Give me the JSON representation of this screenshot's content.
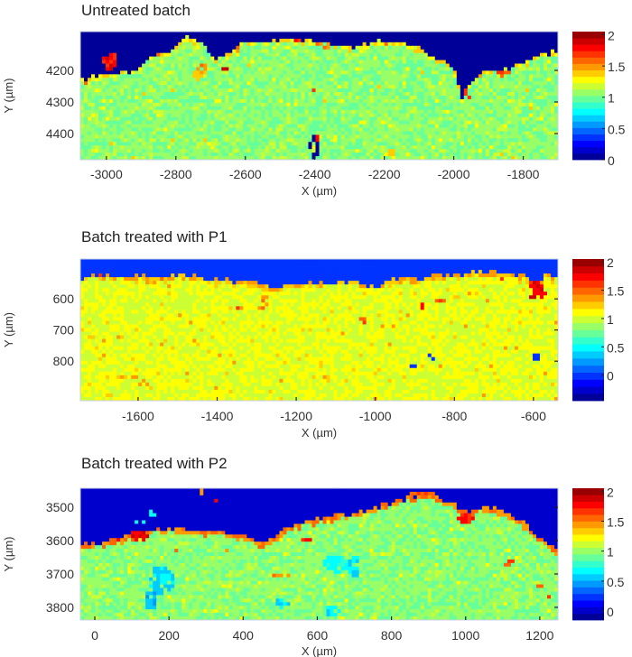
{
  "chart_data": [
    {
      "type": "heatmap",
      "title": "Untreated batch",
      "xlabel": "X (µm)",
      "ylabel": "Y (µm)",
      "xlim": [
        -3075,
        -1700
      ],
      "ylim": [
        4077,
        4483
      ],
      "y_direction": "down",
      "xticks": [
        -3000,
        -2800,
        -2600,
        -2400,
        -2200,
        -2000,
        -1800
      ],
      "yticks": [
        4200,
        4300,
        4400
      ],
      "colormap": "jet",
      "colorbar": {
        "range": [
          0,
          2.05
        ],
        "ticks": [
          "0",
          "0.5",
          "1",
          "1.5",
          "2"
        ],
        "tick_values": [
          0,
          0.5,
          1,
          1.5,
          2
        ],
        "levels": 20
      },
      "grid": false,
      "background_value": 0,
      "bulk_value": 1.05,
      "surface_layer": {
        "depth": 10,
        "value": 1.3
      },
      "surface_profile": [
        [
          -3075,
          4230
        ],
        [
          -3000,
          4215
        ],
        [
          -2920,
          4200
        ],
        [
          -2880,
          4160
        ],
        [
          -2820,
          4140
        ],
        [
          -2770,
          4095
        ],
        [
          -2720,
          4110
        ],
        [
          -2690,
          4170
        ],
        [
          -2650,
          4150
        ],
        [
          -2600,
          4110
        ],
        [
          -2560,
          4105
        ],
        [
          -2400,
          4105
        ],
        [
          -2330,
          4120
        ],
        [
          -2280,
          4130
        ],
        [
          -2230,
          4110
        ],
        [
          -2150,
          4110
        ],
        [
          -2100,
          4130
        ],
        [
          -2050,
          4160
        ],
        [
          -2000,
          4190
        ],
        [
          -1975,
          4290
        ],
        [
          -1940,
          4220
        ],
        [
          -1900,
          4200
        ],
        [
          -1850,
          4195
        ],
        [
          -1800,
          4175
        ],
        [
          -1750,
          4150
        ],
        [
          -1700,
          4140
        ]
      ],
      "features": [
        [
          -2990,
          4170,
          22,
          28,
          1.8
        ],
        [
          -2720,
          4195,
          18,
          20,
          1.5
        ],
        [
          -2660,
          4195,
          8,
          10,
          1.9
        ],
        [
          -1965,
          4285,
          10,
          22,
          1.7
        ],
        [
          -2400,
          4440,
          14,
          40,
          0
        ],
        [
          -2395,
          4415,
          10,
          8,
          1.8
        ],
        [
          -2400,
          4265,
          6,
          6,
          1.6
        ],
        [
          -2450,
          4105,
          10,
          12,
          1.8
        ],
        [
          -2370,
          4120,
          15,
          10,
          1.5
        ],
        [
          -1860,
          4210,
          25,
          8,
          1.6
        ],
        [
          -2180,
          4465,
          15,
          15,
          1.35
        ],
        [
          -2740,
          4215,
          15,
          15,
          1.4
        ]
      ]
    },
    {
      "type": "heatmap",
      "title": "Batch treated with P1",
      "xlabel": "X (µm)",
      "ylabel": "Y (µm)",
      "xlim": [
        -1746,
        -538
      ],
      "ylim": [
        472,
        927
      ],
      "y_direction": "down",
      "xticks": [
        -1600,
        -1400,
        -1200,
        -1000,
        -800,
        -600
      ],
      "yticks": [
        600,
        700,
        800
      ],
      "colormap": "jet",
      "colorbar": {
        "range": [
          -0.45,
          2.05
        ],
        "ticks": [
          "0",
          "0.5",
          "1",
          "1.5",
          "2"
        ],
        "tick_values": [
          0,
          0.5,
          1,
          1.5,
          2
        ],
        "levels": 20
      },
      "grid": false,
      "background_value": 0,
      "bulk_value": 1.05,
      "surface_layer": {
        "depth": 12,
        "value": 1.3
      },
      "surface_profile": [
        [
          -1746,
          532
        ],
        [
          -1700,
          525
        ],
        [
          -1600,
          525
        ],
        [
          -1550,
          535
        ],
        [
          -1500,
          525
        ],
        [
          -1450,
          530
        ],
        [
          -1400,
          540
        ],
        [
          -1300,
          545
        ],
        [
          -1260,
          572
        ],
        [
          -1220,
          555
        ],
        [
          -1150,
          545
        ],
        [
          -1050,
          545
        ],
        [
          -1020,
          560
        ],
        [
          -990,
          560
        ],
        [
          -950,
          535
        ],
        [
          -870,
          530
        ],
        [
          -800,
          520
        ],
        [
          -700,
          515
        ],
        [
          -620,
          530
        ],
        [
          -600,
          545
        ],
        [
          -560,
          525
        ],
        [
          -538,
          520
        ]
      ],
      "features": [
        [
          -590,
          575,
          22,
          30,
          1.75
        ],
        [
          -840,
          607,
          14,
          8,
          1.5
        ],
        [
          -880,
          622,
          6,
          8,
          1.7
        ],
        [
          -1030,
          670,
          10,
          14,
          1.5
        ],
        [
          -862,
          792,
          16,
          12,
          0
        ],
        [
          -592,
          790,
          13,
          14,
          0
        ],
        [
          -905,
          815,
          6,
          5,
          0
        ],
        [
          -1280,
          610,
          10,
          25,
          1.4
        ],
        [
          -1710,
          755,
          5,
          6,
          1.7
        ],
        [
          -1640,
          850,
          45,
          4,
          1.3
        ],
        [
          -1720,
          845,
          8,
          5,
          1.6
        ],
        [
          -1350,
          625,
          5,
          5,
          1.6
        ]
      ]
    },
    {
      "type": "heatmap",
      "title": "Batch treated with P2",
      "xlabel": "X (µm)",
      "ylabel": "Y (µm)",
      "xlim": [
        -39,
        1249
      ],
      "ylim": [
        3443,
        3838
      ],
      "y_direction": "down",
      "xticks": [
        0,
        200,
        400,
        600,
        800,
        1000,
        1200
      ],
      "yticks": [
        3500,
        3600,
        3700,
        3800
      ],
      "colormap": "jet",
      "colorbar": {
        "range": [
          -0.15,
          2.05
        ],
        "ticks": [
          "0",
          "0.5",
          "1",
          "1.5",
          "2"
        ],
        "tick_values": [
          0,
          0.5,
          1,
          1.5,
          2
        ],
        "levels": 20
      },
      "grid": false,
      "background_value": 0,
      "bulk_value": 0.98,
      "surface_layer": {
        "depth": 14,
        "value": 1.5
      },
      "surface_profile": [
        [
          -39,
          3615
        ],
        [
          50,
          3600
        ],
        [
          100,
          3580
        ],
        [
          150,
          3565
        ],
        [
          250,
          3565
        ],
        [
          350,
          3575
        ],
        [
          420,
          3590
        ],
        [
          450,
          3610
        ],
        [
          480,
          3595
        ],
        [
          520,
          3560
        ],
        [
          600,
          3535
        ],
        [
          700,
          3515
        ],
        [
          780,
          3495
        ],
        [
          850,
          3470
        ],
        [
          900,
          3455
        ],
        [
          950,
          3480
        ],
        [
          1000,
          3510
        ],
        [
          1050,
          3500
        ],
        [
          1100,
          3510
        ],
        [
          1150,
          3540
        ],
        [
          1200,
          3590
        ],
        [
          1249,
          3630
        ]
      ],
      "features": [
        [
          120,
          3585,
          25,
          15,
          1.85
        ],
        [
          570,
          3600,
          14,
          8,
          1.7
        ],
        [
          500,
          3700,
          35,
          6,
          1.5
        ],
        [
          1000,
          3535,
          22,
          18,
          1.75
        ],
        [
          1120,
          3670,
          14,
          10,
          1.6
        ],
        [
          220,
          3630,
          7,
          8,
          1.6
        ],
        [
          200,
          3680,
          7,
          8,
          1.7
        ],
        [
          360,
          3625,
          20,
          5,
          1.5
        ],
        [
          180,
          3720,
          35,
          45,
          0.6
        ],
        [
          150,
          3780,
          18,
          30,
          0.55
        ],
        [
          500,
          3790,
          25,
          12,
          0.6
        ],
        [
          650,
          3670,
          35,
          25,
          0.7
        ],
        [
          700,
          3680,
          15,
          35,
          0.6
        ],
        [
          640,
          3810,
          20,
          15,
          0.65
        ],
        [
          80,
          3550,
          20,
          4,
          0.7
        ],
        [
          120,
          3545,
          15,
          4,
          0.7
        ],
        [
          155,
          3520,
          8,
          10,
          0.7
        ],
        [
          290,
          3455,
          6,
          10,
          1.5
        ],
        [
          325,
          3478,
          6,
          5,
          1.8
        ],
        [
          1200,
          3740,
          8,
          6,
          1.6
        ],
        [
          1225,
          3770,
          6,
          5,
          1.7
        ],
        [
          880,
          3460,
          35,
          10,
          1.6
        ]
      ]
    }
  ]
}
